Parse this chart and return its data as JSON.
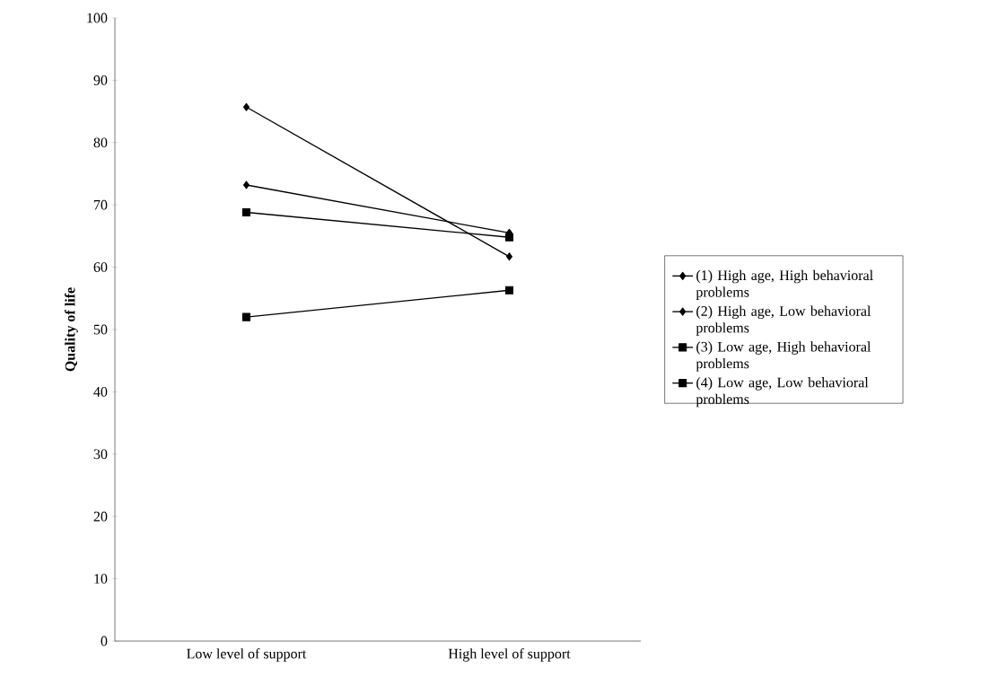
{
  "chart_data": {
    "type": "line",
    "ylabel": "Quality of life",
    "categories": [
      "Low level of support",
      "High level of support"
    ],
    "series": [
      {
        "name": "(1) High age, High behavioral problems",
        "color": "#000000",
        "marker": "diamond",
        "values": [
          85.7,
          61.7
        ]
      },
      {
        "name": "(2) High age, Low behavioral problems",
        "color": "#000000",
        "marker": "diamond",
        "values": [
          73.2,
          65.5
        ]
      },
      {
        "name": "(3) Low age, High behavioral problems",
        "color": "#000000",
        "marker": "square",
        "values": [
          52.0,
          56.3
        ]
      },
      {
        "name": "(4) Low age, Low behavioral problems",
        "color": "#000000",
        "marker": "square",
        "values": [
          68.8,
          64.8
        ]
      }
    ],
    "ylim": [
      0,
      100
    ],
    "yticks": [
      0,
      10,
      20,
      30,
      40,
      50,
      60,
      70,
      80,
      90,
      100
    ],
    "grid": false,
    "legend": "right",
    "line_style": "solid"
  }
}
